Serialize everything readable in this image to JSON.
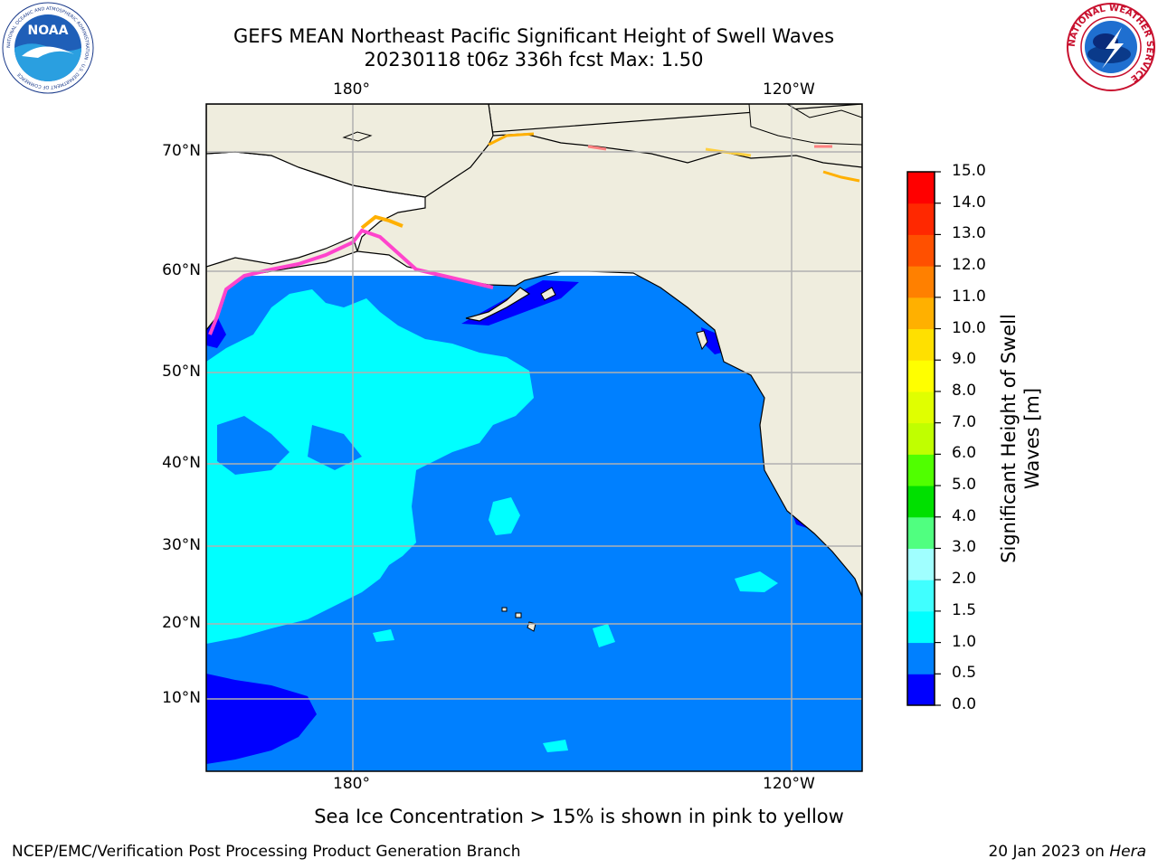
{
  "header": {
    "title_line1": "GEFS MEAN Northeast Pacific Significant Height of Swell Waves",
    "title_line2": "20230118 t06z 336h fcst   Max: 1.50"
  },
  "logos": {
    "noaa_text": "NOAA",
    "noaa_ring": "NATIONAL OCEANIC AND ATMOSPHERIC ADMINISTRATION · U.S. DEPARTMENT OF COMMERCE",
    "nws_ring": "NATIONAL WEATHER SERVICE"
  },
  "map": {
    "lon_labels_top": [
      "180°",
      "120°W"
    ],
    "lon_labels_bottom": [
      "180°",
      "120°W"
    ],
    "lat_labels": [
      "70°N",
      "60°N",
      "50°N",
      "40°N",
      "30°N",
      "20°N",
      "10°N"
    ],
    "land_color": "#efedde",
    "ocean_color": "#0080ff",
    "grid_color": "#b0b0b0"
  },
  "colorbar": {
    "title": "Significant Height of Swell Waves [m]",
    "ticks": [
      "15.0",
      "14.0",
      "13.0",
      "12.0",
      "11.0",
      "10.0",
      "9.0",
      "8.0",
      "7.0",
      "6.0",
      "5.0",
      "4.0",
      "3.0",
      "2.0",
      "1.5",
      "1.0",
      "0.5",
      "0.0"
    ],
    "colors_bottom_to_top": [
      "#0000ff",
      "#0080ff",
      "#00ffff",
      "#40ffff",
      "#a0ffff",
      "#50ff80",
      "#00e000",
      "#50ff00",
      "#c0ff00",
      "#e0ff00",
      "#ffff00",
      "#ffe000",
      "#ffb000",
      "#ff8000",
      "#ff5000",
      "#ff2800",
      "#ff0000"
    ]
  },
  "note": "Sea Ice Concentration > 15% is shown in pink to yellow",
  "footer": {
    "left": "NCEP/EMC/Verification Post Processing Product Generation Branch",
    "right_date": "20 Jan 2023 on",
    "right_machine": "Hera"
  }
}
